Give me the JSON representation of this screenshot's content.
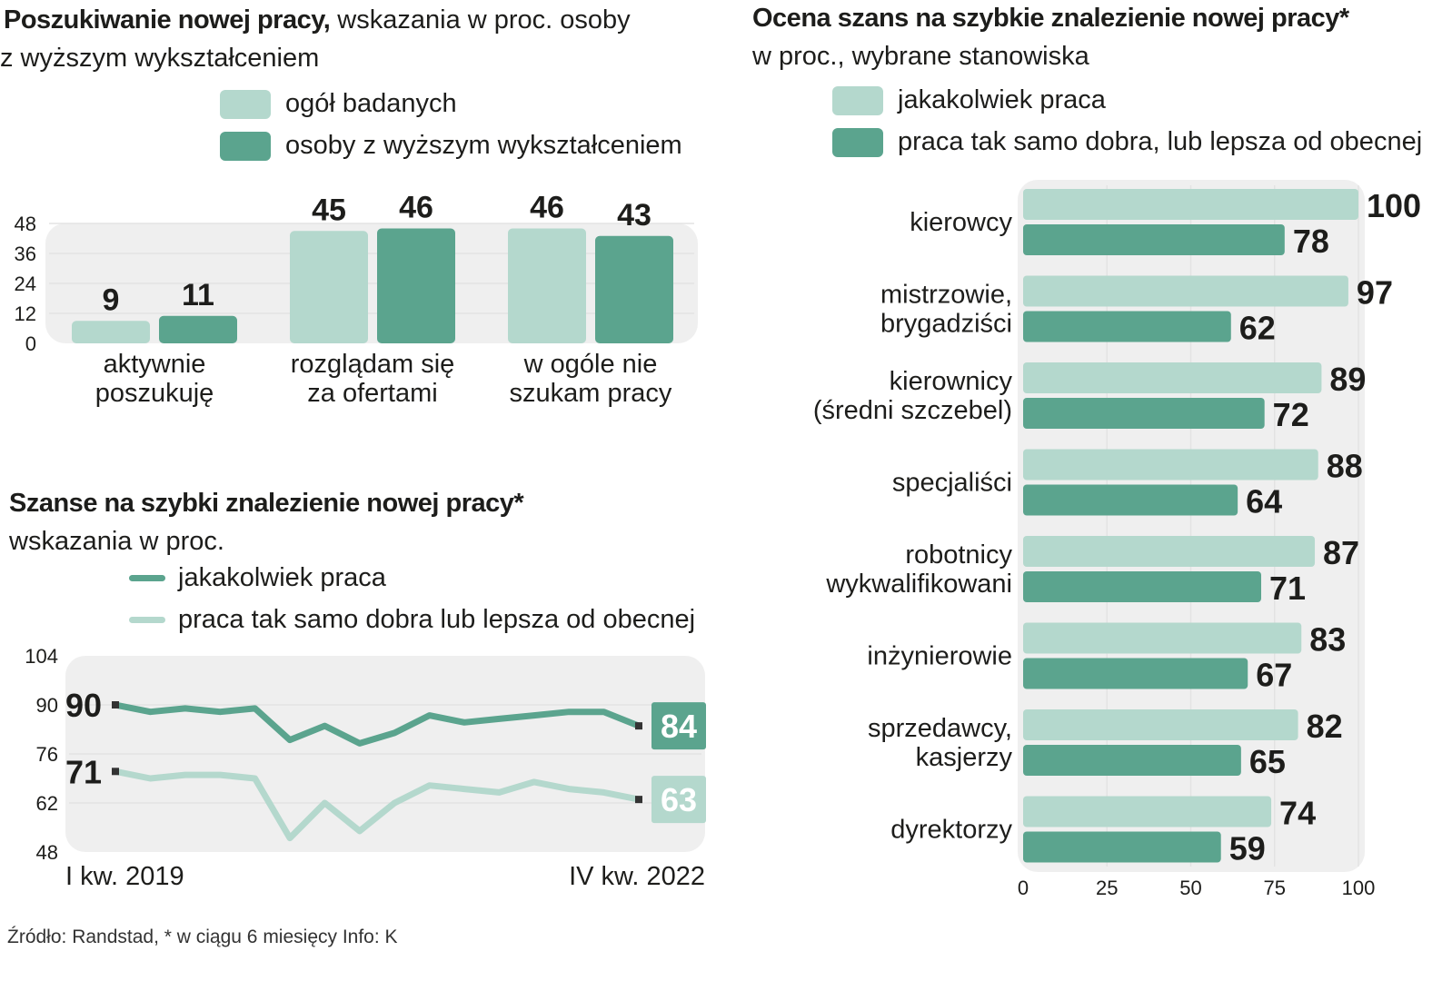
{
  "colors": {
    "light": "#b4d8cd",
    "dark": "#5ba48e",
    "panel": "#efefef",
    "grid": "#e3e3e3",
    "text": "#1d1d1b"
  },
  "titles": {
    "c1_bold": "Poszukiwanie nowej pracy,",
    "c1_rest": " wskazania w proc. osoby",
    "c1_line2": "z wyższym wykształceniem",
    "c2_bold": "Szanse na szybki znalezienie nowej pracy*",
    "c2_line2": "wskazania w proc.",
    "c3_bold": "Ocena szans na szybkie znalezienie nowej pracy*",
    "c3_line2": "w proc., wybrane stanowiska"
  },
  "legends": {
    "c1": [
      "ogół badanych",
      "osoby z wyższym wykształceniem"
    ],
    "c2": [
      "jakakolwiek praca",
      "praca tak samo dobra lub lepsza od obecnej"
    ],
    "c3": [
      "jakakolwiek praca",
      "praca tak samo dobra, lub lepsza od obecnej"
    ]
  },
  "source": "Źródło: Randstad, * w ciągu 6 miesięcy  Info: K",
  "chart_data": [
    {
      "type": "bar",
      "title": "Poszukiwanie nowej pracy, wskazania w proc. osoby z wyższym wykształceniem",
      "categories": [
        [
          "aktywnie",
          "poszukuję"
        ],
        [
          "rozglądam się",
          "za ofertami"
        ],
        [
          "w ogóle nie",
          "szukam pracy"
        ]
      ],
      "series": [
        {
          "name": "ogół badanych",
          "values": [
            9,
            45,
            46
          ]
        },
        {
          "name": "osoby z wyższym wykształceniem",
          "values": [
            11,
            46,
            43
          ]
        }
      ],
      "yticks": [
        "0",
        "12",
        "24",
        "36",
        "48"
      ],
      "ylim": [
        0,
        48
      ]
    },
    {
      "type": "line",
      "title": "Szanse na szybki znalezienie nowej pracy*",
      "x_start_label": "I kw. 2019",
      "x_end_label": "IV kw. 2022",
      "series": [
        {
          "name": "jakakolwiek praca",
          "start_label": "90",
          "end_label": "84",
          "values": [
            90,
            88,
            89,
            88,
            89,
            80,
            84,
            79,
            82,
            87,
            85,
            86,
            87,
            88,
            88,
            84
          ]
        },
        {
          "name": "praca tak samo dobra lub lepsza od obecnej",
          "start_label": "71",
          "end_label": "63",
          "values": [
            71,
            69,
            70,
            70,
            69,
            52,
            62,
            54,
            62,
            67,
            66,
            65,
            68,
            66,
            65,
            63
          ]
        }
      ],
      "yticks": [
        "48",
        "62",
        "76",
        "90",
        "104"
      ],
      "ylim": [
        48,
        104
      ]
    },
    {
      "type": "bar",
      "orientation": "horizontal",
      "title": "Ocena szans na szybkie znalezienie nowej pracy*",
      "categories": [
        [
          "kierowcy"
        ],
        [
          "mistrzowie,",
          "brygadziści"
        ],
        [
          "kierownicy",
          "(średni szczebel)"
        ],
        [
          "specjaliści"
        ],
        [
          "robotnicy",
          "wykwalifikowani"
        ],
        [
          "inżynierowie"
        ],
        [
          "sprzedawcy,",
          "kasjerzy"
        ],
        [
          "dyrektorzy"
        ]
      ],
      "series": [
        {
          "name": "jakakolwiek praca",
          "values": [
            100,
            97,
            89,
            88,
            87,
            83,
            82,
            74
          ]
        },
        {
          "name": "praca tak samo dobra, lub lepsza od obecnej",
          "values": [
            78,
            62,
            72,
            64,
            71,
            67,
            65,
            59
          ]
        }
      ],
      "xticks": [
        "0",
        "25",
        "50",
        "75",
        "100"
      ],
      "xlim": [
        0,
        100
      ]
    }
  ]
}
